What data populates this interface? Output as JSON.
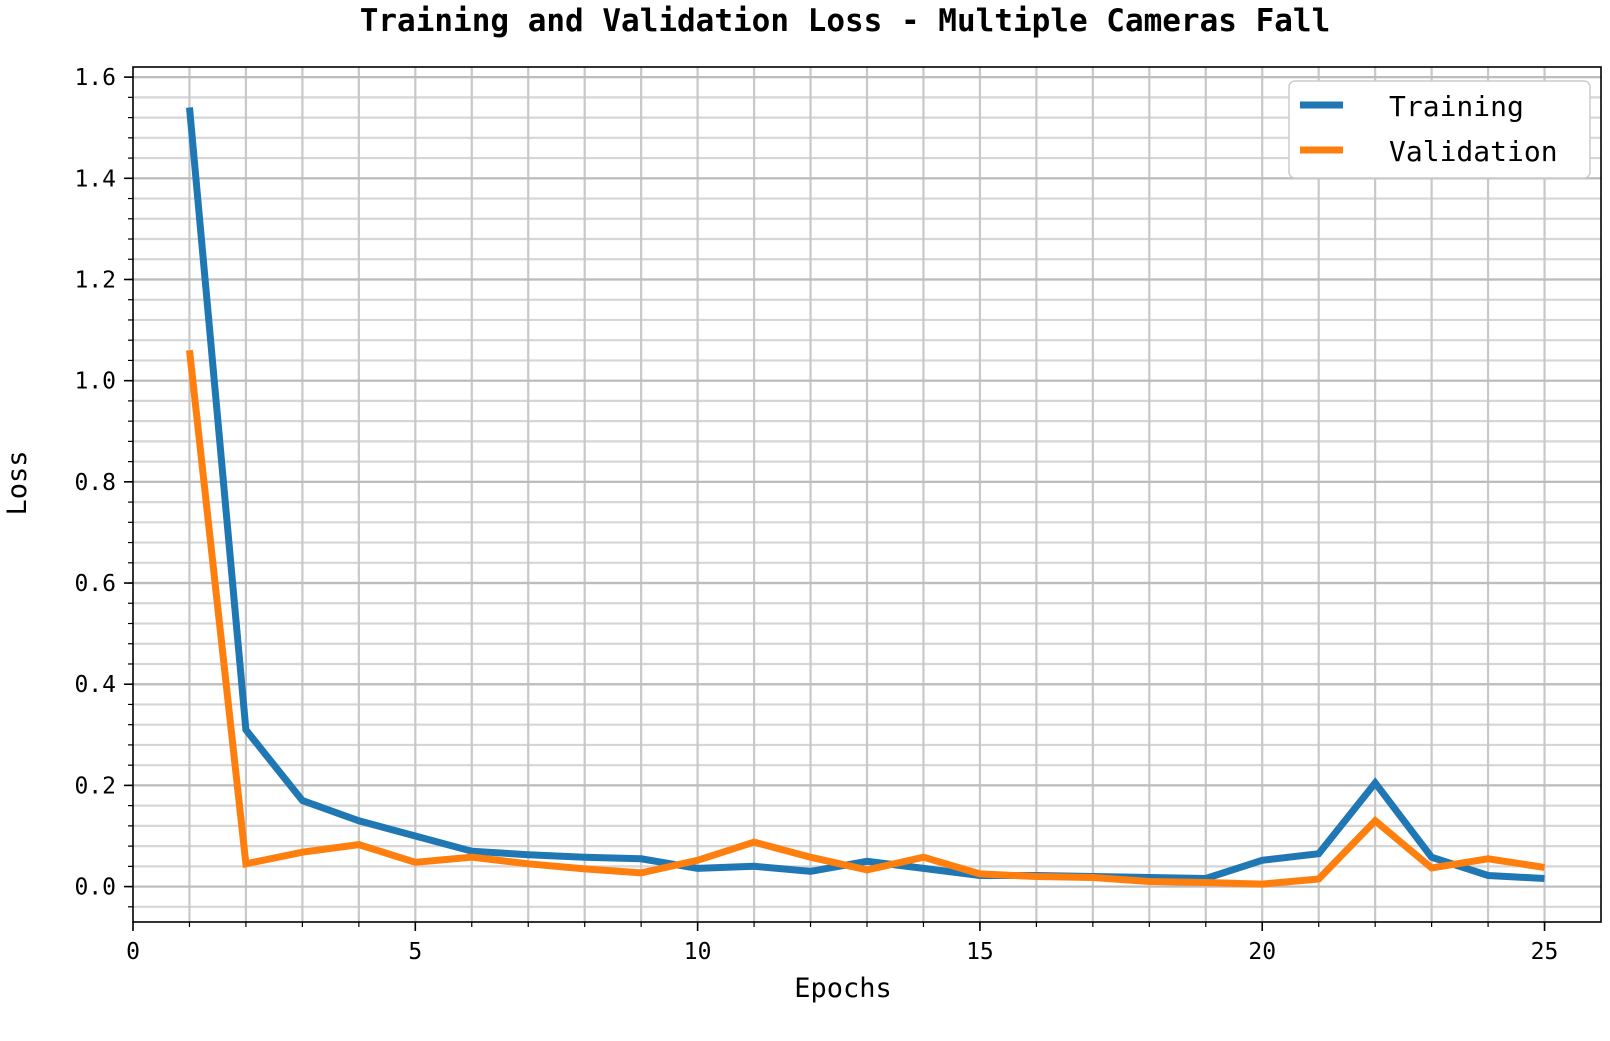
{
  "chart_data": {
    "type": "line",
    "title": "Training and Validation Loss - Multiple Cameras Fall",
    "xlabel": "Epochs",
    "ylabel": "Loss",
    "xlim": [
      0,
      26
    ],
    "ylim": [
      -0.07,
      1.62
    ],
    "xticks": [
      0,
      5,
      10,
      15,
      20,
      25
    ],
    "xtick_labels": [
      "0",
      "5",
      "10",
      "15",
      "20",
      "25"
    ],
    "yticks": [
      0.0,
      0.2,
      0.4,
      0.6,
      0.8,
      1.0,
      1.2,
      1.4,
      1.6
    ],
    "ytick_labels": [
      "0.0",
      "0.2",
      "0.4",
      "0.6",
      "0.8",
      "1.0",
      "1.2",
      "1.4",
      "1.6"
    ],
    "grid": true,
    "minor_grid": true,
    "legend_position": "top-right",
    "x": [
      1,
      2,
      3,
      4,
      5,
      6,
      7,
      8,
      9,
      10,
      11,
      12,
      13,
      14,
      15,
      16,
      17,
      18,
      19,
      20,
      21,
      22,
      23,
      24,
      25
    ],
    "series": [
      {
        "name": "Training",
        "color": "#1f77b4",
        "values": [
          1.54,
          0.31,
          0.17,
          0.13,
          0.1,
          0.07,
          0.063,
          0.058,
          0.055,
          0.036,
          0.04,
          0.03,
          0.05,
          0.036,
          0.022,
          0.022,
          0.02,
          0.018,
          0.016,
          0.052,
          0.065,
          0.205,
          0.058,
          0.022,
          0.016
        ]
      },
      {
        "name": "Validation",
        "color": "#ff7f0e",
        "values": [
          1.06,
          0.045,
          0.068,
          0.083,
          0.048,
          0.058,
          0.045,
          0.035,
          0.027,
          0.052,
          0.088,
          0.058,
          0.033,
          0.058,
          0.025,
          0.02,
          0.018,
          0.01,
          0.008,
          0.005,
          0.015,
          0.13,
          0.037,
          0.055,
          0.038
        ]
      }
    ]
  }
}
